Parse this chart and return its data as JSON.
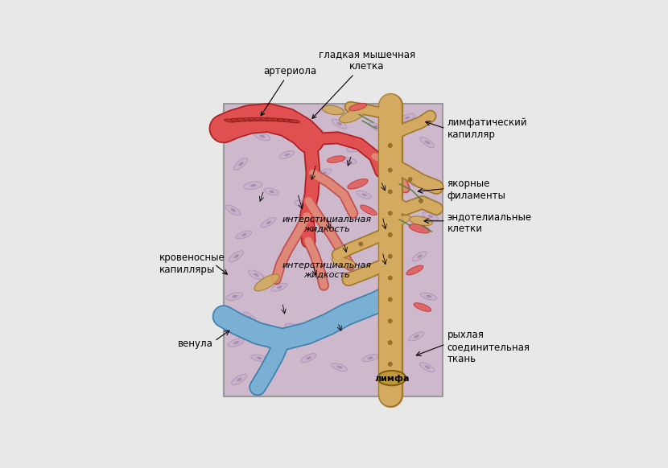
{
  "background_outer": "#e8e8e8",
  "tissue_bg": "#cdb8cc",
  "border_color": "#999999",
  "label_fontsize": 8.5,
  "labels": {
    "arteriola": "артериола",
    "gladkaya": "гладкая мышечная\nклетка",
    "limfaticheskiy": "лимфатический\nкапилляр",
    "yakornye": "якорные\nфиламенты",
    "endotelialnye": "эндотелиальные\nклетки",
    "krovenos": "кровеносные\nкапилляры",
    "venula": "венула",
    "intersticial1": "интерстициальная\nжидкость",
    "intersticial2": "интерстициальная\nжидкость",
    "limfa": "лимфа",
    "ryxlaya": "рыхлая\nсоединительная\nткань"
  },
  "arteriola_color": "#e05050",
  "arteriola_outline": "#b02020",
  "venula_color": "#7ab0d4",
  "venula_outline": "#4080b0",
  "lymph_color": "#d4aa60",
  "lymph_outline": "#a07830",
  "blood_cap_color": "#e08878",
  "blood_cap_outline": "#c05050"
}
